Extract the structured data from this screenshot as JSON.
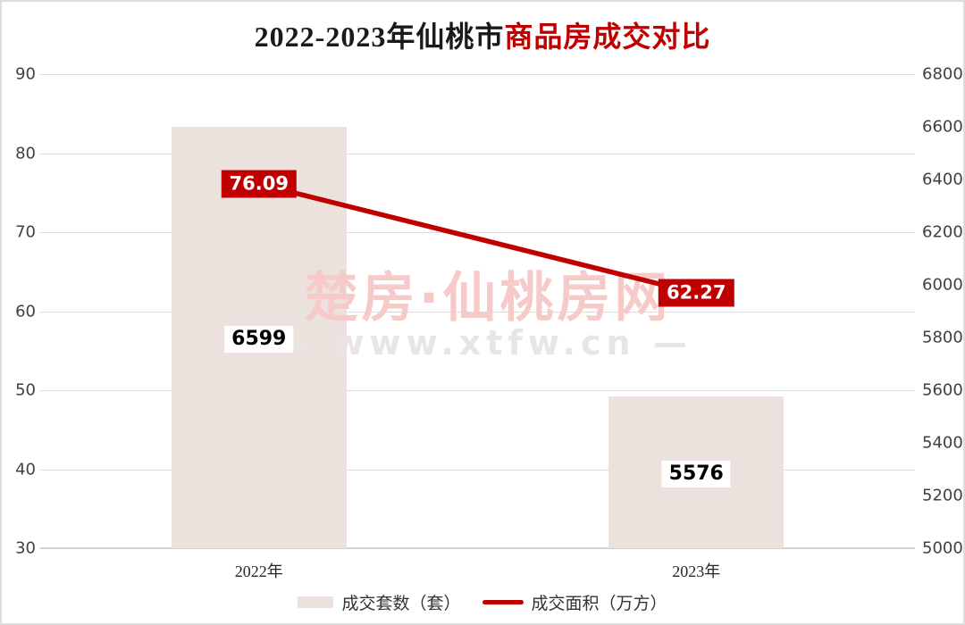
{
  "title": {
    "prefix": "2022-2023年仙桃市",
    "highlight": "商品房成交对比"
  },
  "watermark": {
    "line1": "楚房·仙桃房网",
    "line2": "— www.xtfw.cn —"
  },
  "legend": [
    {
      "label": "成交套数（套）",
      "type": "bar",
      "color": "#ece2dd"
    },
    {
      "label": "成交面积（万方）",
      "type": "line",
      "color": "#c00000"
    }
  ],
  "colors": {
    "accent_red": "#c00000",
    "bar_fill": "#ece2dd",
    "gridline": "#dcdcdc",
    "tick_text": "#404040",
    "watermark_pink": "#f7caca",
    "watermark_gray": "#e9e5e5"
  },
  "chart_data": {
    "type": "bar",
    "title": "2022-2023年仙桃市商品房成交对比",
    "categories": [
      "2022年",
      "2023年"
    ],
    "series": [
      {
        "name": "成交套数（套）",
        "type": "bar",
        "axis": "right",
        "values": [
          6599,
          5576
        ],
        "labels": [
          "6599",
          "5576"
        ],
        "color": "#ece2dd"
      },
      {
        "name": "成交面积（万方）",
        "type": "line",
        "axis": "left",
        "values": [
          76.09,
          62.27
        ],
        "labels": [
          "76.09",
          "62.27"
        ],
        "color": "#c00000"
      }
    ],
    "left_axis": {
      "min": 30,
      "max": 90,
      "step": 10,
      "ticks": [
        90,
        80,
        70,
        60,
        50,
        40,
        30
      ]
    },
    "right_axis": {
      "min": 5000,
      "max": 6800,
      "step": 200,
      "ticks": [
        6800,
        6600,
        6400,
        6200,
        6000,
        5800,
        5600,
        5400,
        5200,
        5000
      ]
    },
    "grid": "horizontal",
    "legend_position": "bottom"
  }
}
